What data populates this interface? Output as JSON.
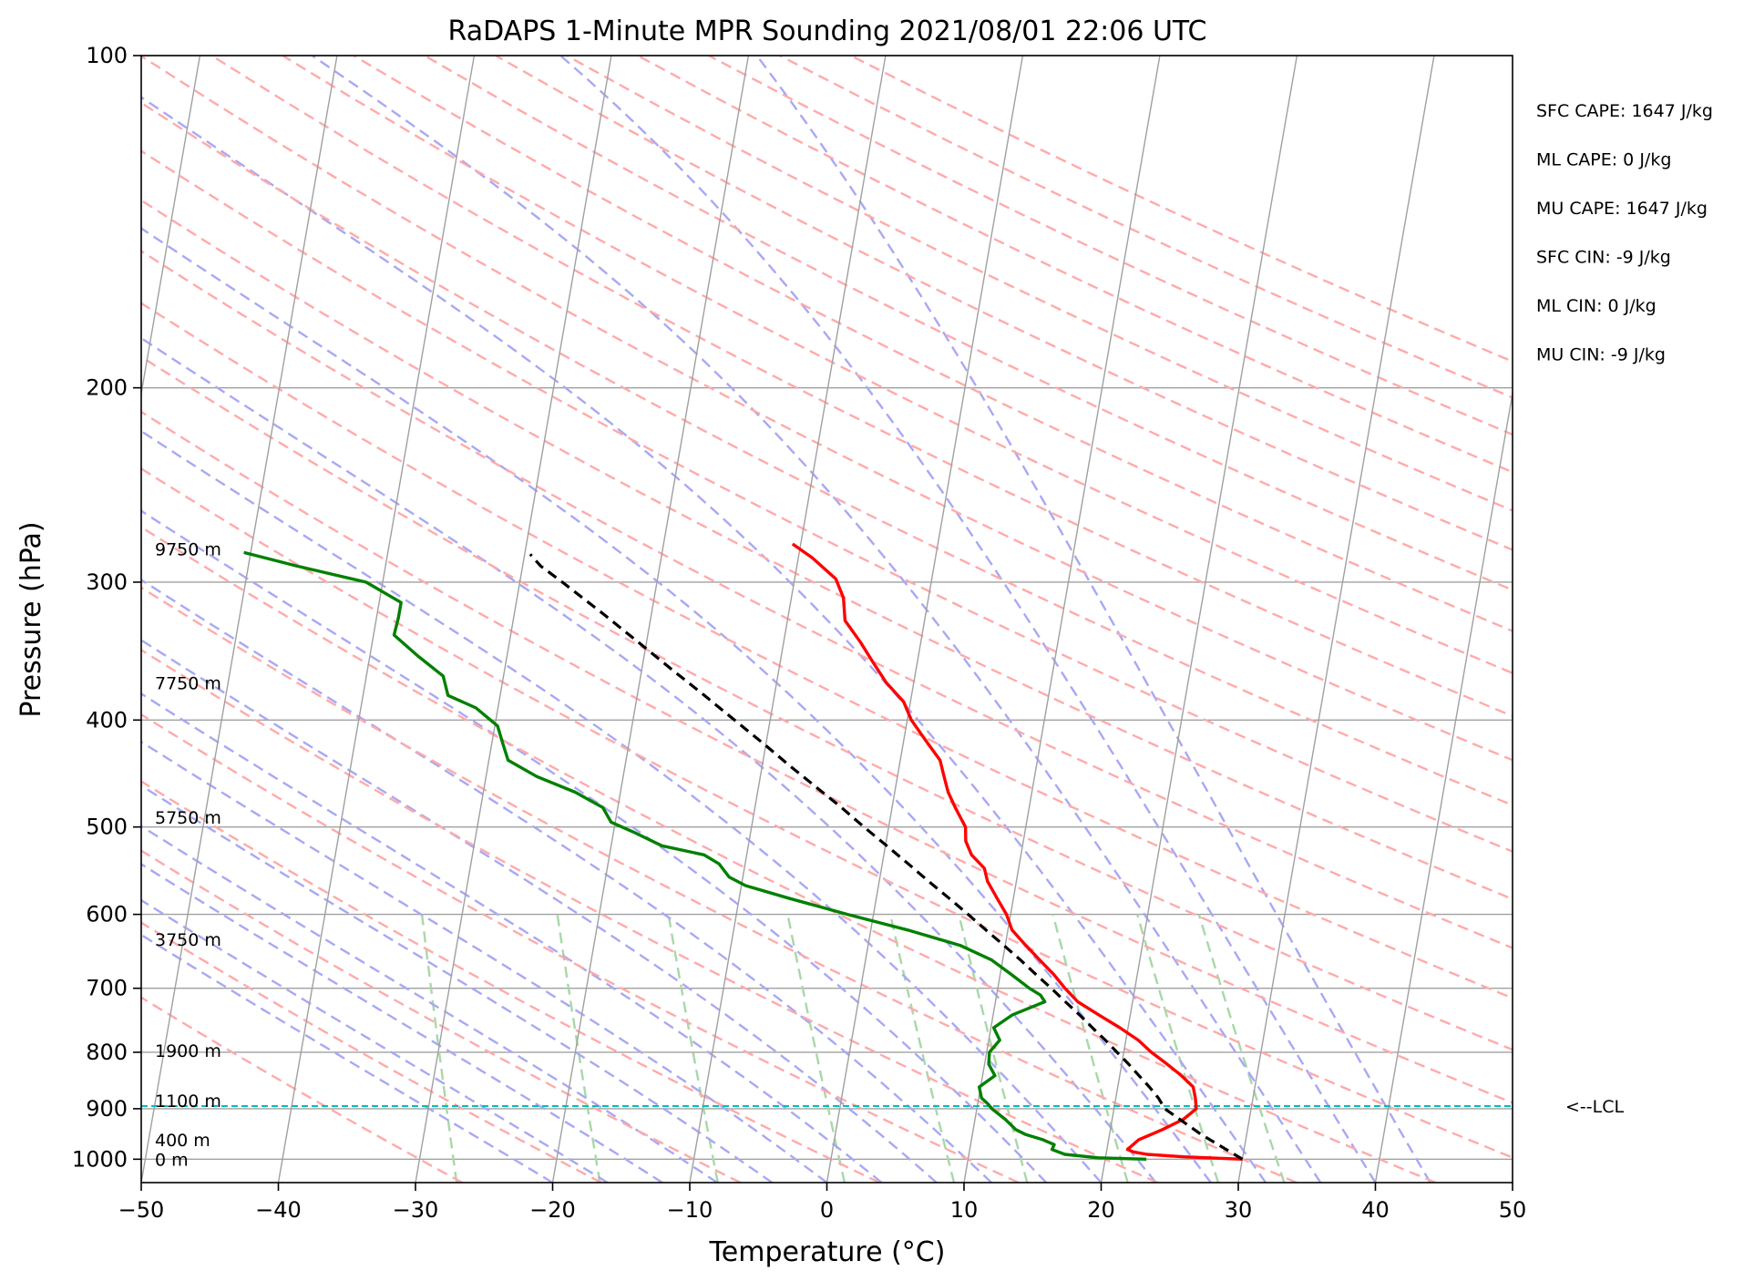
{
  "chart_data": {
    "type": "line",
    "title": "RaDAPS 1-Minute MPR Sounding 2021/08/01 22:06 UTC",
    "xlabel": "Temperature (°C)",
    "ylabel": "Pressure (hPa)",
    "xlim": [
      -50,
      50
    ],
    "ylim": [
      1050,
      100
    ],
    "y_scale": "log",
    "grid": true,
    "skew": true,
    "x_ticks": [
      -50,
      -40,
      -30,
      -20,
      -10,
      0,
      10,
      20,
      30,
      40,
      50
    ],
    "x_tick_labels": [
      "−50",
      "−40",
      "−30",
      "−20",
      "−10",
      "0",
      "10",
      "20",
      "30",
      "40",
      "50"
    ],
    "y_ticks": [
      100,
      200,
      300,
      400,
      500,
      600,
      700,
      800,
      900,
      1000
    ],
    "y_tick_labels": [
      "100",
      "200",
      "300",
      "400",
      "500",
      "600",
      "700",
      "800",
      "900",
      "1000"
    ],
    "series": [
      {
        "color": "#ff0000",
        "style": "solid",
        "points": [
          [
            1000,
            30.0
          ],
          [
            995,
            25.7
          ],
          [
            990,
            23.0
          ],
          [
            985,
            22.0
          ],
          [
            980,
            21.5
          ],
          [
            960,
            22.2
          ],
          [
            940,
            23.8
          ],
          [
            920,
            25.2
          ],
          [
            900,
            26.0
          ],
          [
            880,
            25.8
          ],
          [
            860,
            25.5
          ],
          [
            840,
            24.5
          ],
          [
            820,
            23.3
          ],
          [
            800,
            22.0
          ],
          [
            780,
            20.9
          ],
          [
            760,
            19.4
          ],
          [
            740,
            17.7
          ],
          [
            720,
            16.0
          ],
          [
            700,
            14.9
          ],
          [
            680,
            13.9
          ],
          [
            660,
            12.7
          ],
          [
            640,
            11.5
          ],
          [
            620,
            10.3
          ],
          [
            600,
            9.7
          ],
          [
            580,
            8.8
          ],
          [
            560,
            7.9
          ],
          [
            545,
            7.5
          ],
          [
            530,
            6.4
          ],
          [
            515,
            5.8
          ],
          [
            500,
            5.6
          ],
          [
            480,
            4.6
          ],
          [
            465,
            3.9
          ],
          [
            450,
            3.4
          ],
          [
            435,
            2.9
          ],
          [
            420,
            1.8
          ],
          [
            400,
            0.3
          ],
          [
            385,
            -0.5
          ],
          [
            370,
            -2.0
          ],
          [
            355,
            -3.2
          ],
          [
            340,
            -4.4
          ],
          [
            325,
            -5.8
          ],
          [
            310,
            -6.2
          ],
          [
            298,
            -7.0
          ],
          [
            285,
            -9.0
          ],
          [
            277,
            -10.6
          ]
        ]
      },
      {
        "color": "#008000",
        "style": "solid",
        "points": [
          [
            1000,
            23.0
          ],
          [
            997,
            19.5
          ],
          [
            990,
            17.0
          ],
          [
            980,
            16.0
          ],
          [
            970,
            16.1
          ],
          [
            960,
            15.2
          ],
          [
            950,
            13.9
          ],
          [
            940,
            13.1
          ],
          [
            920,
            12.2
          ],
          [
            900,
            11.1
          ],
          [
            890,
            10.7
          ],
          [
            880,
            10.2
          ],
          [
            860,
            9.9
          ],
          [
            840,
            10.9
          ],
          [
            820,
            10.3
          ],
          [
            800,
            10.2
          ],
          [
            780,
            10.8
          ],
          [
            760,
            10.2
          ],
          [
            740,
            11.4
          ],
          [
            720,
            13.6
          ],
          [
            710,
            13.2
          ],
          [
            700,
            12.3
          ],
          [
            680,
            10.8
          ],
          [
            660,
            9.2
          ],
          [
            640,
            6.7
          ],
          [
            620,
            2.7
          ],
          [
            600,
            -1.9
          ],
          [
            580,
            -6.4
          ],
          [
            565,
            -9.7
          ],
          [
            555,
            -11.0
          ],
          [
            540,
            -11.9
          ],
          [
            530,
            -13.1
          ],
          [
            520,
            -16.3
          ],
          [
            505,
            -18.6
          ],
          [
            495,
            -20.3
          ],
          [
            480,
            -21.1
          ],
          [
            465,
            -23.3
          ],
          [
            450,
            -26.3
          ],
          [
            435,
            -28.6
          ],
          [
            420,
            -29.2
          ],
          [
            405,
            -29.8
          ],
          [
            390,
            -31.6
          ],
          [
            380,
            -33.8
          ],
          [
            365,
            -34.4
          ],
          [
            350,
            -36.5
          ],
          [
            335,
            -38.5
          ],
          [
            323,
            -38.4
          ],
          [
            313,
            -38.4
          ],
          [
            300,
            -41.2
          ],
          [
            290,
            -46.5
          ],
          [
            282,
            -50.5
          ]
        ]
      },
      {
        "color": "#000000",
        "style": "dashed",
        "points": [
          [
            1000,
            30.0
          ],
          [
            950,
            26.7
          ],
          [
            900,
            23.7
          ],
          [
            880,
            23.1
          ],
          [
            860,
            22.3
          ],
          [
            840,
            21.4
          ],
          [
            820,
            20.5
          ],
          [
            800,
            19.5
          ],
          [
            780,
            18.5
          ],
          [
            760,
            17.4
          ],
          [
            740,
            16.3
          ],
          [
            720,
            15.1
          ],
          [
            700,
            13.9
          ],
          [
            680,
            12.6
          ],
          [
            660,
            11.3
          ],
          [
            640,
            9.9
          ],
          [
            620,
            8.4
          ],
          [
            600,
            6.9
          ],
          [
            580,
            5.3
          ],
          [
            560,
            3.6
          ],
          [
            540,
            1.9
          ],
          [
            520,
            0.1
          ],
          [
            500,
            -1.8
          ],
          [
            480,
            -3.7
          ],
          [
            460,
            -5.8
          ],
          [
            440,
            -8.0
          ],
          [
            420,
            -10.2
          ],
          [
            400,
            -12.6
          ],
          [
            380,
            -15.1
          ],
          [
            360,
            -17.8
          ],
          [
            340,
            -20.6
          ],
          [
            320,
            -23.6
          ],
          [
            300,
            -26.9
          ],
          [
            290,
            -28.7
          ],
          [
            283,
            -29.6
          ]
        ]
      }
    ],
    "annotations": {
      "height_labels": [
        {
          "text": "9750 m",
          "pressure": 280
        },
        {
          "text": "7750 m",
          "pressure": 370
        },
        {
          "text": "5750 m",
          "pressure": 490
        },
        {
          "text": "3750 m",
          "pressure": 632
        },
        {
          "text": "1900 m",
          "pressure": 797
        },
        {
          "text": "1100 m",
          "pressure": 885
        },
        {
          "text": "400 m",
          "pressure": 960
        },
        {
          "text": "0 m",
          "pressure": 1000
        }
      ],
      "lcl": {
        "pressure": 895,
        "label": "<--LCL",
        "color": "#00bfbf"
      },
      "parameters": [
        "SFC CAPE: 1647 J/kg",
        "ML CAPE: 0 J/kg",
        "MU CAPE: 1647 J/kg",
        "SFC CIN: -9 J/kg",
        "ML CIN: 0 J/kg",
        "MU CIN: -9 J/kg"
      ]
    },
    "reference_lines": {
      "isotherm_color": "#a0a0a0",
      "dry_adiabat_color": "#ffaaaa",
      "moist_adiabat_color": "#a8a8f5",
      "mixing_ratio_color": "#a8d8a8"
    }
  }
}
